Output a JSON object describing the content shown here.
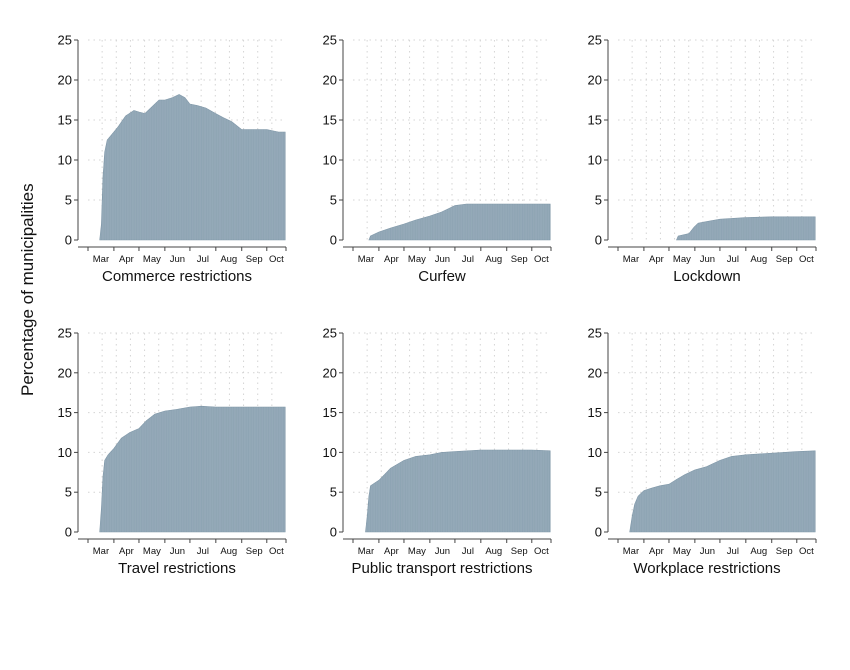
{
  "figure": {
    "ylabel": "Percentage of municipalities",
    "colors": {
      "bar": "#8fa5b4",
      "bar_edge": "#7d95a6",
      "grid": "#d4d4d4",
      "axis": "#444444",
      "text": "#111111"
    }
  },
  "chart_data": [
    {
      "type": "area",
      "title": "Commerce restrictions",
      "month_ticks": [
        "Mar",
        "Apr",
        "May",
        "Jun",
        "Jul",
        "Aug",
        "Sep",
        "Oct"
      ],
      "ylim": [
        0,
        25
      ],
      "yticks": [
        0,
        5,
        10,
        15,
        20,
        25
      ],
      "grid": true,
      "x": [
        "2020-03-15",
        "2020-03-17",
        "2020-03-19",
        "2020-03-21",
        "2020-03-24",
        "2020-03-28",
        "2020-04-05",
        "2020-04-15",
        "2020-04-25",
        "2020-05-01",
        "2020-05-08",
        "2020-05-15",
        "2020-05-25",
        "2020-06-01",
        "2020-06-10",
        "2020-06-18",
        "2020-06-25",
        "2020-07-01",
        "2020-07-10",
        "2020-07-20",
        "2020-08-01",
        "2020-08-10",
        "2020-08-20",
        "2020-09-01",
        "2020-09-15",
        "2020-10-01",
        "2020-10-15",
        "2020-10-23"
      ],
      "values": [
        0,
        2,
        8,
        11,
        12.5,
        13,
        14,
        15.5,
        16.2,
        16,
        15.8,
        16.5,
        17.5,
        17.5,
        17.8,
        18.2,
        17.8,
        17,
        16.8,
        16.5,
        15.8,
        15.3,
        14.8,
        13.8,
        13.8,
        13.8,
        13.5,
        13.5
      ]
    },
    {
      "type": "area",
      "title": "Curfew",
      "month_ticks": [
        "Mar",
        "Apr",
        "May",
        "Jun",
        "Jul",
        "Aug",
        "Sep",
        "Oct"
      ],
      "ylim": [
        0,
        25
      ],
      "yticks": [
        0,
        5,
        10,
        15,
        20,
        25
      ],
      "grid": true,
      "x": [
        "2020-03-20",
        "2020-03-22",
        "2020-04-01",
        "2020-04-15",
        "2020-05-01",
        "2020-05-15",
        "2020-06-01",
        "2020-06-15",
        "2020-06-25",
        "2020-07-01",
        "2020-07-15",
        "2020-08-01",
        "2020-09-01",
        "2020-10-01",
        "2020-10-23"
      ],
      "values": [
        0,
        0.5,
        1,
        1.5,
        2,
        2.5,
        3,
        3.5,
        4,
        4.3,
        4.5,
        4.5,
        4.5,
        4.5,
        4.5
      ]
    },
    {
      "type": "area",
      "title": "Lockdown",
      "month_ticks": [
        "Mar",
        "Apr",
        "May",
        "Jun",
        "Jul",
        "Aug",
        "Sep",
        "Oct"
      ],
      "ylim": [
        0,
        25
      ],
      "yticks": [
        0,
        5,
        10,
        15,
        20,
        25
      ],
      "grid": true,
      "x": [
        "2020-05-10",
        "2020-05-12",
        "2020-05-25",
        "2020-05-31",
        "2020-06-05",
        "2020-06-15",
        "2020-07-01",
        "2020-08-01",
        "2020-09-01",
        "2020-10-01",
        "2020-10-23"
      ],
      "values": [
        0,
        0.5,
        0.8,
        1.6,
        2.1,
        2.3,
        2.6,
        2.8,
        2.9,
        2.9,
        2.9
      ]
    },
    {
      "type": "area",
      "title": "Travel restrictions",
      "month_ticks": [
        "Mar",
        "Apr",
        "May",
        "Jun",
        "Jul",
        "Aug",
        "Sep",
        "Oct"
      ],
      "ylim": [
        0,
        25
      ],
      "yticks": [
        0,
        5,
        10,
        15,
        20,
        25
      ],
      "grid": true,
      "x": [
        "2020-03-15",
        "2020-03-17",
        "2020-03-19",
        "2020-03-21",
        "2020-03-25",
        "2020-04-01",
        "2020-04-10",
        "2020-04-20",
        "2020-05-01",
        "2020-05-10",
        "2020-05-20",
        "2020-06-01",
        "2020-06-15",
        "2020-07-01",
        "2020-07-15",
        "2020-08-01",
        "2020-09-01",
        "2020-10-01",
        "2020-10-23"
      ],
      "values": [
        0,
        3,
        7,
        9,
        9.7,
        10.5,
        11.8,
        12.5,
        13,
        14,
        14.8,
        15.2,
        15.4,
        15.7,
        15.8,
        15.7,
        15.7,
        15.7,
        15.7
      ]
    },
    {
      "type": "area",
      "title": "Public transport restrictions",
      "month_ticks": [
        "Mar",
        "Apr",
        "May",
        "Jun",
        "Jul",
        "Aug",
        "Sep",
        "Oct"
      ],
      "ylim": [
        0,
        25
      ],
      "yticks": [
        0,
        5,
        10,
        15,
        20,
        25
      ],
      "grid": true,
      "x": [
        "2020-03-16",
        "2020-03-18",
        "2020-03-20",
        "2020-03-22",
        "2020-04-01",
        "2020-04-15",
        "2020-05-01",
        "2020-05-15",
        "2020-06-01",
        "2020-06-15",
        "2020-07-01",
        "2020-08-01",
        "2020-09-01",
        "2020-10-01",
        "2020-10-23"
      ],
      "values": [
        0,
        2,
        4.5,
        5.8,
        6.5,
        8,
        9,
        9.5,
        9.7,
        10,
        10.1,
        10.3,
        10.3,
        10.3,
        10.2
      ]
    },
    {
      "type": "area",
      "title": "Workplace restrictions",
      "month_ticks": [
        "Mar",
        "Apr",
        "May",
        "Jun",
        "Jul",
        "Aug",
        "Sep",
        "Oct"
      ],
      "ylim": [
        0,
        25
      ],
      "yticks": [
        0,
        5,
        10,
        15,
        20,
        25
      ],
      "grid": true,
      "x": [
        "2020-03-15",
        "2020-03-18",
        "2020-03-21",
        "2020-03-25",
        "2020-04-01",
        "2020-04-10",
        "2020-04-20",
        "2020-05-01",
        "2020-05-10",
        "2020-05-20",
        "2020-06-01",
        "2020-06-15",
        "2020-07-01",
        "2020-07-15",
        "2020-08-01",
        "2020-09-01",
        "2020-10-01",
        "2020-10-23"
      ],
      "values": [
        0,
        2,
        3.5,
        4.5,
        5.2,
        5.5,
        5.8,
        6,
        6.6,
        7.2,
        7.8,
        8.2,
        9,
        9.5,
        9.7,
        9.9,
        10.1,
        10.2
      ]
    }
  ]
}
